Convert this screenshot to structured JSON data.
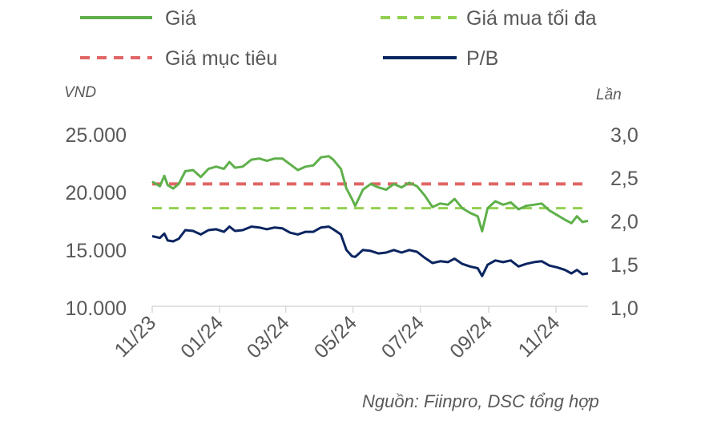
{
  "chart_data": {
    "type": "line",
    "legend": [
      {
        "name": "Giá",
        "color": "#5fb04b",
        "dash": "solid",
        "series": "gia"
      },
      {
        "name": "Giá mua tối đa",
        "color": "#92d050",
        "dash": "dashed",
        "series": "gia_mua_toi_da"
      },
      {
        "name": "Giá mục tiêu",
        "color": "#e06666",
        "dash": "dashed",
        "series": "gia_muc_tieu"
      },
      {
        "name": "P/B",
        "color": "#0b2560",
        "dash": "solid",
        "series": "pb"
      }
    ],
    "y_left": {
      "unit": "VND",
      "ticks": [
        "25.000",
        "20.000",
        "15.000",
        "10.000"
      ],
      "range": [
        10000,
        25000
      ]
    },
    "y_right": {
      "unit": "Lần",
      "ticks": [
        "3,0",
        "2,5",
        "2,0",
        "1,5",
        "1,0"
      ],
      "range": [
        1.0,
        3.0
      ]
    },
    "x_ticks": [
      "11/23",
      "01/24",
      "03/24",
      "05/24",
      "07/24",
      "09/24",
      "11/24"
    ],
    "x_range": [
      "2023-11-01",
      "2024-11-30"
    ],
    "source": "Nguồn: Fiinpro, DSC tổng hợp",
    "gia_muc_tieu": 20600,
    "gia_mua_toi_da": 18500,
    "series": [
      {
        "name": "Giá",
        "axis": "left",
        "color": "#5fb04b",
        "points": [
          [
            "2023-11-01",
            20800
          ],
          [
            "2023-11-08",
            20400
          ],
          [
            "2023-11-12",
            21300
          ],
          [
            "2023-11-15",
            20500
          ],
          [
            "2023-11-20",
            20200
          ],
          [
            "2023-11-25",
            20600
          ],
          [
            "2023-12-01",
            21700
          ],
          [
            "2023-12-08",
            21800
          ],
          [
            "2023-12-15",
            21200
          ],
          [
            "2023-12-22",
            21900
          ],
          [
            "2023-12-29",
            22100
          ],
          [
            "2024-01-05",
            21900
          ],
          [
            "2024-01-10",
            22500
          ],
          [
            "2024-01-15",
            22000
          ],
          [
            "2024-01-22",
            22100
          ],
          [
            "2024-01-30",
            22700
          ],
          [
            "2024-02-06",
            22800
          ],
          [
            "2024-02-13",
            22600
          ],
          [
            "2024-02-20",
            22800
          ],
          [
            "2024-02-27",
            22800
          ],
          [
            "2024-03-05",
            22300
          ],
          [
            "2024-03-12",
            21800
          ],
          [
            "2024-03-19",
            22100
          ],
          [
            "2024-03-26",
            22200
          ],
          [
            "2024-04-02",
            22900
          ],
          [
            "2024-04-09",
            23000
          ],
          [
            "2024-04-13",
            22700
          ],
          [
            "2024-04-20",
            21900
          ],
          [
            "2024-04-25",
            20200
          ],
          [
            "2024-04-30",
            19300
          ],
          [
            "2024-05-03",
            18700
          ],
          [
            "2024-05-10",
            20100
          ],
          [
            "2024-05-17",
            20600
          ],
          [
            "2024-05-24",
            20300
          ],
          [
            "2024-05-31",
            20100
          ],
          [
            "2024-06-07",
            20600
          ],
          [
            "2024-06-14",
            20300
          ],
          [
            "2024-06-21",
            20700
          ],
          [
            "2024-06-28",
            20400
          ],
          [
            "2024-07-05",
            19600
          ],
          [
            "2024-07-12",
            18600
          ],
          [
            "2024-07-19",
            18900
          ],
          [
            "2024-07-26",
            18800
          ],
          [
            "2024-08-01",
            19300
          ],
          [
            "2024-08-08",
            18500
          ],
          [
            "2024-08-15",
            18100
          ],
          [
            "2024-08-22",
            17800
          ],
          [
            "2024-08-26",
            16500
          ],
          [
            "2024-08-31",
            18500
          ],
          [
            "2024-09-07",
            19100
          ],
          [
            "2024-09-14",
            18800
          ],
          [
            "2024-09-21",
            19000
          ],
          [
            "2024-09-28",
            18400
          ],
          [
            "2024-10-05",
            18700
          ],
          [
            "2024-10-12",
            18800
          ],
          [
            "2024-10-19",
            18900
          ],
          [
            "2024-10-26",
            18300
          ],
          [
            "2024-11-02",
            17900
          ],
          [
            "2024-11-09",
            17500
          ],
          [
            "2024-11-15",
            17200
          ],
          [
            "2024-11-20",
            17800
          ],
          [
            "2024-11-25",
            17300
          ],
          [
            "2024-11-30",
            17400
          ]
        ]
      },
      {
        "name": "P/B",
        "axis": "right",
        "color": "#0b2560",
        "points": [
          [
            "2023-11-01",
            1.81
          ],
          [
            "2023-11-08",
            1.79
          ],
          [
            "2023-11-12",
            1.84
          ],
          [
            "2023-11-15",
            1.76
          ],
          [
            "2023-11-20",
            1.75
          ],
          [
            "2023-11-25",
            1.78
          ],
          [
            "2023-12-01",
            1.88
          ],
          [
            "2023-12-08",
            1.87
          ],
          [
            "2023-12-15",
            1.83
          ],
          [
            "2023-12-22",
            1.88
          ],
          [
            "2023-12-29",
            1.89
          ],
          [
            "2024-01-05",
            1.86
          ],
          [
            "2024-01-10",
            1.92
          ],
          [
            "2024-01-15",
            1.87
          ],
          [
            "2024-01-22",
            1.88
          ],
          [
            "2024-01-30",
            1.92
          ],
          [
            "2024-02-06",
            1.91
          ],
          [
            "2024-02-13",
            1.89
          ],
          [
            "2024-02-20",
            1.91
          ],
          [
            "2024-02-27",
            1.9
          ],
          [
            "2024-03-05",
            1.85
          ],
          [
            "2024-03-12",
            1.83
          ],
          [
            "2024-03-19",
            1.86
          ],
          [
            "2024-03-26",
            1.86
          ],
          [
            "2024-04-02",
            1.91
          ],
          [
            "2024-04-09",
            1.92
          ],
          [
            "2024-04-13",
            1.89
          ],
          [
            "2024-04-20",
            1.83
          ],
          [
            "2024-04-25",
            1.65
          ],
          [
            "2024-04-30",
            1.58
          ],
          [
            "2024-05-03",
            1.57
          ],
          [
            "2024-05-10",
            1.65
          ],
          [
            "2024-05-17",
            1.64
          ],
          [
            "2024-05-24",
            1.61
          ],
          [
            "2024-05-31",
            1.62
          ],
          [
            "2024-06-07",
            1.65
          ],
          [
            "2024-06-14",
            1.62
          ],
          [
            "2024-06-21",
            1.65
          ],
          [
            "2024-06-28",
            1.63
          ],
          [
            "2024-07-05",
            1.56
          ],
          [
            "2024-07-12",
            1.5
          ],
          [
            "2024-07-19",
            1.52
          ],
          [
            "2024-07-26",
            1.51
          ],
          [
            "2024-08-01",
            1.55
          ],
          [
            "2024-08-08",
            1.49
          ],
          [
            "2024-08-15",
            1.46
          ],
          [
            "2024-08-22",
            1.44
          ],
          [
            "2024-08-26",
            1.35
          ],
          [
            "2024-08-31",
            1.48
          ],
          [
            "2024-09-07",
            1.53
          ],
          [
            "2024-09-14",
            1.51
          ],
          [
            "2024-09-21",
            1.53
          ],
          [
            "2024-09-28",
            1.46
          ],
          [
            "2024-10-05",
            1.49
          ],
          [
            "2024-10-12",
            1.51
          ],
          [
            "2024-10-19",
            1.52
          ],
          [
            "2024-10-26",
            1.47
          ],
          [
            "2024-11-02",
            1.45
          ],
          [
            "2024-11-09",
            1.42
          ],
          [
            "2024-11-15",
            1.38
          ],
          [
            "2024-11-20",
            1.42
          ],
          [
            "2024-11-25",
            1.37
          ],
          [
            "2024-11-30",
            1.38
          ]
        ]
      }
    ],
    "grid": false,
    "legend_placement": "top"
  }
}
